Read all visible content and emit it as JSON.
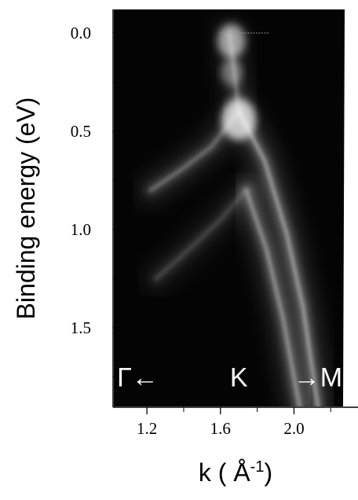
{
  "chart_data": {
    "type": "heatmap",
    "title": "",
    "xlabel": "k ( Å",
    "xlabel_sup": "-1",
    "xlabel_close": ")",
    "ylabel": "Binding energy (eV)",
    "xlim": [
      1.02,
      2.28
    ],
    "ylim": [
      1.9,
      -0.12
    ],
    "x_ticks": [
      1.2,
      1.6,
      2.0
    ],
    "x_tick_labels": [
      "1.2",
      "1.6",
      "2.0"
    ],
    "y_ticks": [
      0.0,
      0.5,
      1.0,
      1.5
    ],
    "y_tick_labels": [
      "0.0",
      "0.5",
      "1.0",
      "1.5"
    ],
    "colormap": "grayscale (black = low intensity, white = high intensity)",
    "fermi_level_line": {
      "y": 0.0,
      "x_range": [
        1.6,
        1.87
      ],
      "style": "dotted"
    },
    "annotations": [
      {
        "text": "Γ←",
        "x": 1.15,
        "y": 1.75
      },
      {
        "text": "K",
        "x": 1.7,
        "y": 1.75
      },
      {
        "text": "→M",
        "x": 2.13,
        "y": 1.75
      }
    ],
    "bands": [
      {
        "id": "band-upper-cone",
        "points": [
          [
            1.65,
            0.0
          ],
          [
            1.7,
            0.4
          ],
          [
            1.55,
            0.58
          ],
          [
            1.38,
            0.7
          ],
          [
            1.22,
            0.8
          ]
        ],
        "intensity": 0.55
      },
      {
        "id": "band-outer-right",
        "points": [
          [
            1.7,
            0.4
          ],
          [
            1.84,
            0.65
          ],
          [
            1.96,
            1.02
          ],
          [
            2.05,
            1.4
          ],
          [
            2.13,
            1.9
          ]
        ],
        "intensity": 0.75
      },
      {
        "id": "band-inner-right",
        "points": [
          [
            1.74,
            0.8
          ],
          [
            1.85,
            1.1
          ],
          [
            1.94,
            1.45
          ],
          [
            2.0,
            1.75
          ],
          [
            2.03,
            1.9
          ]
        ],
        "intensity": 0.7
      },
      {
        "id": "band-left-lower",
        "points": [
          [
            1.74,
            0.8
          ],
          [
            1.6,
            0.95
          ],
          [
            1.43,
            1.1
          ],
          [
            1.25,
            1.25
          ]
        ],
        "intensity": 0.35
      }
    ]
  }
}
